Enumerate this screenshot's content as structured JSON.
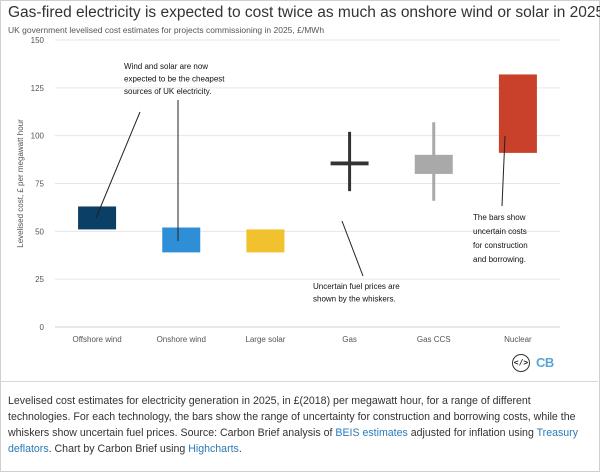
{
  "header": {
    "title": "Gas-fired electricity is expected to cost twice as much as onshore wind or solar in 2025",
    "subtitle": "UK government levelised cost estimates for projects commissioning in 2025, £/MWh"
  },
  "chart_data": {
    "type": "bar",
    "title": "Gas-fired electricity is expected to cost twice as much as onshore wind or solar in 2025",
    "subtitle": "UK government levelised cost estimates for projects commissioning in 2025, £/MWh",
    "ylabel": "Levelised cost, £ per megawatt hour",
    "xlabel": "",
    "ylim": [
      0,
      150
    ],
    "yticks": [
      0,
      25,
      50,
      75,
      100,
      125,
      150
    ],
    "grid": true,
    "categories": [
      "Offshore wind",
      "Onshore wind",
      "Large solar",
      "Gas",
      "Gas CCS",
      "Nuclear"
    ],
    "bars": [
      {
        "category": "Offshore wind",
        "low": 51,
        "high": 63,
        "color": "#0b3f66"
      },
      {
        "category": "Onshore wind",
        "low": 39,
        "high": 52,
        "color": "#2e8fd6"
      },
      {
        "category": "Large solar",
        "low": 39,
        "high": 51,
        "color": "#f2c12e"
      },
      {
        "category": "Gas",
        "low": 84.5,
        "high": 86.5,
        "color": "#333333"
      },
      {
        "category": "Gas CCS",
        "low": 80,
        "high": 90,
        "color": "#a9a9a9"
      },
      {
        "category": "Nuclear",
        "low": 91,
        "high": 132,
        "color": "#c9412b"
      }
    ],
    "whiskers": [
      {
        "category": "Gas",
        "low": 71,
        "high": 102,
        "color": "#333333"
      },
      {
        "category": "Gas CCS",
        "low": 66,
        "high": 107,
        "color": "#a9a9a9"
      }
    ],
    "annotations": [
      "Wind and solar are now expected to be the cheapest sources of UK electricity.",
      "Uncertain fuel prices are shown by the whiskers.",
      "The bars show uncertain costs for construction and borrowing."
    ]
  },
  "annotations": {
    "wind_solar": [
      "Wind and solar are now",
      "expected to be the cheapest",
      "sources of UK electricity."
    ],
    "fuel": [
      "Uncertain fuel prices are",
      "shown by the whiskers."
    ],
    "bars": [
      "The bars show",
      "uncertain costs",
      "for construction",
      "and borrowing."
    ]
  },
  "logo": {
    "code_glyph": "</>",
    "text": "CB",
    "code_icon": "code-icon",
    "accent": "#58a6d8"
  },
  "caption": {
    "part1": "Levelised cost estimates for electricity generation in 2025, in £(2018) per megawatt hour, for a range of different technologies. For each technology, the bars show the range of uncertainty for construction and borrowing costs, while the whiskers show uncertain fuel prices. Source: Carbon Brief analysis of ",
    "link1": "BEIS estimates",
    "part2": " adjusted for inflation using ",
    "link2": "Treasury deflators",
    "part3": ". Chart by Carbon Brief using ",
    "link3": "Highcharts",
    "part4": ".",
    "link_color": "#2a7ab8"
  }
}
